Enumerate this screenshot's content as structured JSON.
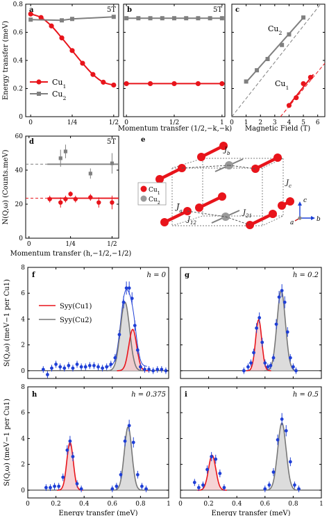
{
  "colors": {
    "cu1": "#e8141b",
    "cu2": "#7f7f7f",
    "data": "#1f3fd6",
    "gauss_fill": "#dcdcdc",
    "red_fill": "#f4c8ca"
  },
  "panels_top": {
    "a": {
      "letter": "a",
      "field": "5T",
      "ylabel": "Energy transfer (meV)",
      "legend": [
        "Cu1",
        "Cu2"
      ]
    },
    "b": {
      "letter": "b",
      "field": "5T"
    },
    "c": {
      "letter": "c",
      "labels": [
        "Cu2",
        "Cu1"
      ]
    },
    "xlabel_b": "Momentum transfer (1/2,−k,−k)",
    "xlabel_c": "Magnetic Field (T)"
  },
  "panel_d": {
    "letter": "d",
    "field": "5T",
    "ylabel": "N(Q,ω) (Counts.meV)",
    "xlabel": "Momentum transfer (h,−1/2,−1/2)"
  },
  "panel_e": {
    "letter": "e",
    "legend": [
      "Cu1",
      "Cu2"
    ],
    "labels": [
      "Jb",
      "Ja",
      "J12",
      "J21",
      "Jc"
    ],
    "axes": [
      "a",
      "b",
      "c"
    ]
  },
  "spectra": {
    "ylabel": "S(Q,ω) (meV−1 per Cu1)",
    "xlabel": "Energy transfer (meV)",
    "legend": [
      "Syy(Cu1)",
      "Syy(Cu2)"
    ]
  },
  "chart_data": [
    {
      "id": "a",
      "type": "line",
      "title": "5T",
      "xlabel": "",
      "ylabel": "Energy transfer (meV)",
      "xlim": [
        -0.03,
        0.53
      ],
      "ylim": [
        0,
        0.8
      ],
      "xticks": [
        "0",
        "1/4",
        "1/2"
      ],
      "yticks": [
        "0",
        "0.2",
        "0.4",
        "0.6",
        "0.8"
      ],
      "series": [
        {
          "name": "Cu1",
          "x": [
            0,
            0.0625,
            0.125,
            0.1875,
            0.25,
            0.3125,
            0.375,
            0.4375,
            0.5
          ],
          "y": [
            0.73,
            0.705,
            0.645,
            0.56,
            0.47,
            0.38,
            0.3,
            0.245,
            0.225
          ]
        },
        {
          "name": "Cu2",
          "x": [
            0,
            0.1875,
            0.25,
            0.5
          ],
          "y": [
            0.69,
            0.685,
            0.695,
            0.71
          ]
        }
      ]
    },
    {
      "id": "b",
      "type": "line",
      "title": "5T",
      "xlabel": "Momentum transfer (1/2,−k,−k)",
      "xlim": [
        -0.03,
        1.03
      ],
      "ylim": [
        0,
        0.8
      ],
      "xticks": [
        "0",
        "1/2",
        "1"
      ],
      "series": [
        {
          "name": "Cu1",
          "x": [
            0,
            0.25,
            0.5,
            0.75,
            1
          ],
          "y": [
            0.235,
            0.235,
            0.235,
            0.235,
            0.235
          ]
        },
        {
          "name": "Cu2",
          "x": [
            0,
            0.125,
            0.25,
            0.375,
            0.5,
            0.625,
            0.75,
            0.875,
            1
          ],
          "y": [
            0.7,
            0.7,
            0.7,
            0.7,
            0.7,
            0.7,
            0.7,
            0.7,
            0.7
          ]
        }
      ]
    },
    {
      "id": "c",
      "type": "line",
      "xlabel": "Magnetic Field (T)",
      "xlim": [
        0,
        6.5
      ],
      "ylim": [
        0,
        0.8
      ],
      "xticks": [
        "0",
        "1",
        "2",
        "3",
        "4",
        "5",
        "6"
      ],
      "series": [
        {
          "name": "Cu2",
          "x": [
            1,
            1.75,
            2.5,
            3.5,
            4,
            5
          ],
          "y": [
            0.25,
            0.33,
            0.41,
            0.51,
            0.585,
            0.705
          ]
        },
        {
          "name": "Cu1",
          "x": [
            4,
            4.5,
            5,
            5.5
          ],
          "y": [
            0.08,
            0.135,
            0.235,
            0.28
          ]
        }
      ]
    },
    {
      "id": "d",
      "type": "scatter",
      "title": "5T",
      "xlabel": "Momentum transfer (h,−1/2,−1/2)",
      "ylabel": "N(Q,ω) (Counts.meV)",
      "xlim": [
        -0.02,
        0.54
      ],
      "ylim": [
        0,
        60
      ],
      "xticks": [
        "0",
        "1/4",
        "1/2"
      ],
      "yticks": [
        "0",
        "20",
        "40",
        "60"
      ],
      "series": [
        {
          "name": "Cu1",
          "x": [
            0.125,
            0.19,
            0.22,
            0.25,
            0.28,
            0.37,
            0.42,
            0.5
          ],
          "y": [
            23,
            21,
            23,
            26,
            23,
            24,
            21,
            21
          ],
          "err": [
            2,
            3,
            2,
            1.5,
            2,
            2,
            3,
            4
          ],
          "mean": 23.5
        },
        {
          "name": "Cu2",
          "x": [
            0.19,
            0.22,
            0.37,
            0.5
          ],
          "y": [
            47,
            51,
            38,
            44
          ],
          "err": [
            5,
            4,
            3,
            6
          ],
          "mean": 43.5
        }
      ]
    },
    {
      "id": "f",
      "type": "area",
      "title": "h = 0",
      "xlim": [
        0,
        1
      ],
      "ylim": [
        -0.6,
        8
      ],
      "xticks": [
        "0",
        "0.2",
        "0.4",
        "0.6",
        "0.8",
        "1"
      ],
      "yticks": [
        "0",
        "2",
        "4",
        "6",
        "8"
      ],
      "series": [
        {
          "name": "Syy(Cu1)",
          "center": 0.745,
          "amplitude": 3.2,
          "sigma": 0.028
        },
        {
          "name": "Syy(Cu2)",
          "center": 0.69,
          "amplitude": 5.3,
          "sigma": 0.033
        },
        {
          "name": "data",
          "x": [
            0.11,
            0.14,
            0.17,
            0.2,
            0.23,
            0.26,
            0.29,
            0.32,
            0.35,
            0.38,
            0.41,
            0.44,
            0.47,
            0.5,
            0.53,
            0.56,
            0.59,
            0.62,
            0.65,
            0.68,
            0.7,
            0.72,
            0.74,
            0.76,
            0.78,
            0.8,
            0.83,
            0.86,
            0.89,
            0.92,
            0.95,
            0.98
          ],
          "y": [
            0.1,
            -0.3,
            0.2,
            0.5,
            0.3,
            0.2,
            0.4,
            0.2,
            0.5,
            0.3,
            0.3,
            0.4,
            0.4,
            0.3,
            0.2,
            0.3,
            0.5,
            1.0,
            2.8,
            5.3,
            6.4,
            6.4,
            5.6,
            3.5,
            1.6,
            0.3,
            0.1,
            0.1,
            0.0,
            0.1,
            0.1,
            0.0
          ]
        }
      ]
    },
    {
      "id": "g",
      "type": "area",
      "title": "h = 0.2",
      "xlim": [
        0,
        1
      ],
      "ylim": [
        -0.6,
        8
      ],
      "xticks": [
        "0",
        "0.2",
        "0.4",
        "0.6",
        "0.8",
        "1"
      ],
      "series": [
        {
          "name": "Syy(Cu1)",
          "center": 0.555,
          "amplitude": 3.95,
          "sigma": 0.022
        },
        {
          "name": "Syy(Cu2)",
          "center": 0.715,
          "amplitude": 6.2,
          "sigma": 0.03
        },
        {
          "name": "data",
          "x": [
            0.45,
            0.48,
            0.5,
            0.52,
            0.54,
            0.56,
            0.58,
            0.6,
            0.62,
            0.64,
            0.66,
            0.68,
            0.7,
            0.72,
            0.74,
            0.76,
            0.78,
            0.8,
            0.82
          ],
          "y": [
            0.0,
            0.3,
            0.6,
            1.4,
            3.3,
            4.1,
            2.2,
            0.6,
            0.3,
            0.4,
            1.0,
            3.6,
            5.7,
            6.2,
            5.3,
            3.0,
            1.0,
            0.3,
            0.0
          ]
        }
      ]
    },
    {
      "id": "h",
      "type": "area",
      "title": "h = 0.375",
      "xlim": [
        0,
        1
      ],
      "ylim": [
        -0.6,
        8
      ],
      "xticks": [
        "0",
        "0.2",
        "0.4",
        "0.6",
        "0.8",
        "1"
      ],
      "yticks": [
        "0",
        "2",
        "4",
        "6",
        "8"
      ],
      "series": [
        {
          "name": "Syy(Cu1)",
          "center": 0.3,
          "amplitude": 3.7,
          "sigma": 0.023
        },
        {
          "name": "Syy(Cu2)",
          "center": 0.712,
          "amplitude": 4.9,
          "sigma": 0.027
        },
        {
          "name": "data",
          "x": [
            0.13,
            0.16,
            0.19,
            0.22,
            0.25,
            0.28,
            0.3,
            0.32,
            0.35,
            0.38,
            0.6,
            0.63,
            0.66,
            0.69,
            0.72,
            0.75,
            0.78,
            0.81,
            0.84
          ],
          "y": [
            0.2,
            0.2,
            0.3,
            0.3,
            1.0,
            3.1,
            3.8,
            2.6,
            0.5,
            0.1,
            0.1,
            0.3,
            1.2,
            3.8,
            5.0,
            3.7,
            1.2,
            0.3,
            0.1
          ]
        }
      ]
    },
    {
      "id": "i",
      "type": "area",
      "title": "h = 0.5",
      "xlim": [
        0,
        1
      ],
      "ylim": [
        -0.6,
        8
      ],
      "xticks": [
        "0",
        "0.2",
        "0.4",
        "0.6",
        "0.8",
        "1"
      ],
      "series": [
        {
          "name": "Syy(Cu1)",
          "center": 0.225,
          "amplitude": 2.7,
          "sigma": 0.026
        },
        {
          "name": "Syy(Cu2)",
          "center": 0.72,
          "amplitude": 5.2,
          "sigma": 0.03
        },
        {
          "name": "data",
          "x": [
            0.1,
            0.13,
            0.16,
            0.19,
            0.22,
            0.25,
            0.28,
            0.31,
            0.6,
            0.63,
            0.66,
            0.69,
            0.72,
            0.75,
            0.78,
            0.81,
            0.84
          ],
          "y": [
            0.6,
            0.2,
            0.4,
            1.6,
            2.6,
            2.4,
            1.3,
            0.2,
            0.1,
            0.4,
            1.4,
            3.9,
            5.5,
            4.6,
            2.2,
            0.4,
            0.1
          ]
        }
      ]
    }
  ]
}
